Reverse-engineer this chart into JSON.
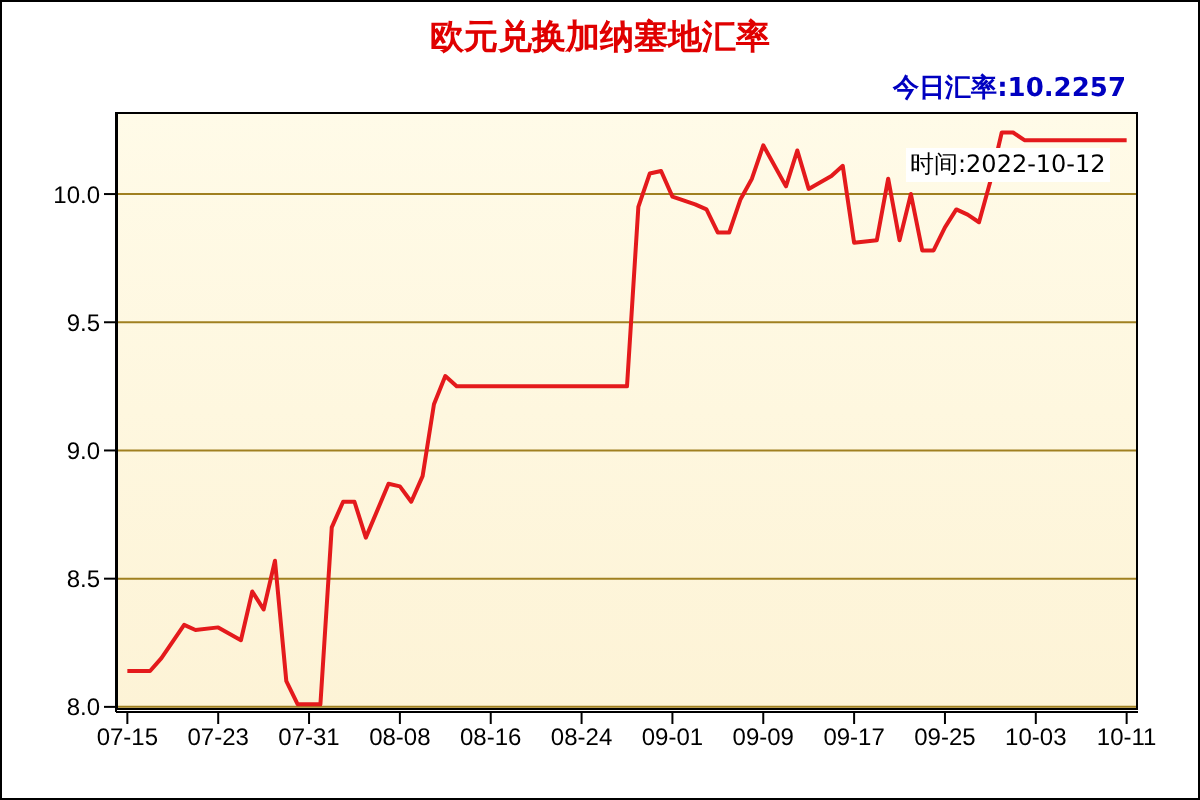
{
  "chart_data": {
    "type": "line",
    "title": "欧元兑换加纳塞地汇率",
    "annotations": [
      "今日汇率:10.2257",
      "时间:2022-10-12"
    ],
    "x": [
      "2022-07-15",
      "2022-07-17",
      "2022-07-18",
      "2022-07-20",
      "2022-07-21",
      "2022-07-23",
      "2022-07-25",
      "2022-07-26",
      "2022-07-27",
      "2022-07-28",
      "2022-07-29",
      "2022-07-30",
      "2022-08-01",
      "2022-08-02",
      "2022-08-03",
      "2022-08-04",
      "2022-08-05",
      "2022-08-07",
      "2022-08-08",
      "2022-08-09",
      "2022-08-10",
      "2022-08-11",
      "2022-08-12",
      "2022-08-13",
      "2022-08-28",
      "2022-08-29",
      "2022-08-30",
      "2022-08-31",
      "2022-09-01",
      "2022-09-03",
      "2022-09-04",
      "2022-09-05",
      "2022-09-06",
      "2022-09-07",
      "2022-09-08",
      "2022-09-09",
      "2022-09-11",
      "2022-09-12",
      "2022-09-13",
      "2022-09-15",
      "2022-09-16",
      "2022-09-17",
      "2022-09-19",
      "2022-09-20",
      "2022-09-21",
      "2022-09-22",
      "2022-09-23",
      "2022-09-24",
      "2022-09-25",
      "2022-09-26",
      "2022-09-27",
      "2022-09-28",
      "2022-09-29",
      "2022-09-30",
      "2022-10-01",
      "2022-10-02",
      "2022-10-05",
      "2022-10-11"
    ],
    "series": [
      {
        "color": "#e41a1c",
        "values": [
          8.14,
          8.14,
          8.19,
          8.32,
          8.3,
          8.31,
          8.26,
          8.45,
          8.38,
          8.57,
          8.1,
          8.01,
          8.01,
          8.7,
          8.8,
          8.8,
          8.66,
          8.87,
          8.86,
          8.8,
          8.9,
          9.18,
          9.29,
          9.25,
          9.25,
          9.95,
          10.08,
          10.09,
          9.99,
          9.96,
          9.94,
          9.85,
          9.85,
          9.98,
          10.06,
          10.19,
          10.03,
          10.17,
          10.02,
          10.07,
          10.11,
          9.81,
          9.82,
          10.06,
          9.82,
          10.0,
          9.78,
          9.78,
          9.87,
          9.94,
          9.92,
          9.89,
          10.05,
          10.24,
          10.24,
          10.21,
          10.21,
          10.21
        ]
      }
    ],
    "xlim": [
      "2022-07-14",
      "2022-10-12"
    ],
    "xticks": [
      {
        "value": "2022-07-15",
        "label": "07-15"
      },
      {
        "value": "2022-07-23",
        "label": "07-23"
      },
      {
        "value": "2022-07-31",
        "label": "07-31"
      },
      {
        "value": "2022-08-08",
        "label": "08-08"
      },
      {
        "value": "2022-08-16",
        "label": "08-16"
      },
      {
        "value": "2022-08-24",
        "label": "08-24"
      },
      {
        "value": "2022-09-01",
        "label": "09-01"
      },
      {
        "value": "2022-09-09",
        "label": "09-09"
      },
      {
        "value": "2022-09-17",
        "label": "09-17"
      },
      {
        "value": "2022-09-25",
        "label": "09-25"
      },
      {
        "value": "2022-10-03",
        "label": "10-03"
      },
      {
        "value": "2022-10-11",
        "label": "10-11"
      }
    ],
    "ylim": [
      7.98,
      10.32
    ],
    "yticks": [
      {
        "value": 8,
        "label": "8.0"
      },
      {
        "value": 8.5,
        "label": "8.5"
      },
      {
        "value": 9,
        "label": "9.0"
      },
      {
        "value": 9.5,
        "label": "9.5"
      },
      {
        "value": 10,
        "label": "10.0"
      }
    ],
    "grid": "y",
    "marker": "none",
    "line_style": "solid",
    "legend": false
  }
}
